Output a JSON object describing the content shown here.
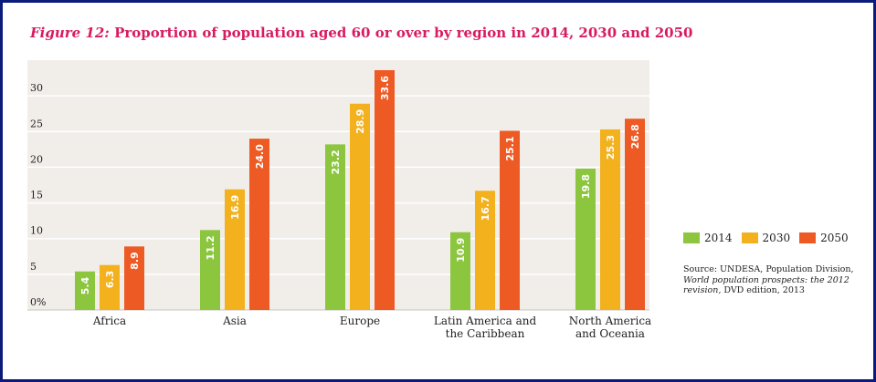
{
  "title": {
    "figure_label": "Figure 12:",
    "text": "Proportion of population aged 60 or over by region in 2014, 2030 and 2050"
  },
  "source": {
    "prefix": "Source: UNDESA, Population Division, ",
    "italic": "World population prospects: the 2012 revision,",
    "suffix": " DVD edition, 2013"
  },
  "colors": {
    "2014": "#8cc63f",
    "2030": "#f2b11d",
    "2050": "#ee5a24",
    "plot_background": "#f1eeea",
    "gridline": "#ffffff",
    "title": "#d81b60",
    "frame": "#0a1b7a"
  },
  "chart_data": {
    "type": "bar",
    "title": "Proportion of population aged 60 or over by region in 2014, 2030 and 2050",
    "xlabel": "",
    "ylabel": "",
    "ylim": [
      0,
      35
    ],
    "yticks": [
      0,
      5,
      10,
      15,
      20,
      25,
      30
    ],
    "ytick_labels": [
      "0%",
      "5",
      "10",
      "15",
      "20",
      "25",
      "30"
    ],
    "grid": true,
    "legend_position": "right",
    "categories": [
      [
        "Africa"
      ],
      [
        "Asia"
      ],
      [
        "Europe"
      ],
      [
        "Latin America and",
        "the Caribbean"
      ],
      [
        "North America",
        "and Oceania"
      ]
    ],
    "series": [
      {
        "name": "2014",
        "values": [
          5.4,
          11.2,
          23.2,
          10.9,
          19.8
        ]
      },
      {
        "name": "2030",
        "values": [
          6.3,
          16.9,
          28.9,
          16.7,
          25.3
        ]
      },
      {
        "name": "2050",
        "values": [
          8.9,
          24.0,
          33.6,
          25.1,
          26.8
        ]
      }
    ],
    "data_labels": [
      [
        "5.4",
        "11.2",
        "23.2",
        "10.9",
        "19.8"
      ],
      [
        "6.3",
        "16.9",
        "28.9",
        "16.7",
        "25.3"
      ],
      [
        "8.9",
        "24.0",
        "33.6",
        "25.1",
        "26.8"
      ]
    ]
  }
}
